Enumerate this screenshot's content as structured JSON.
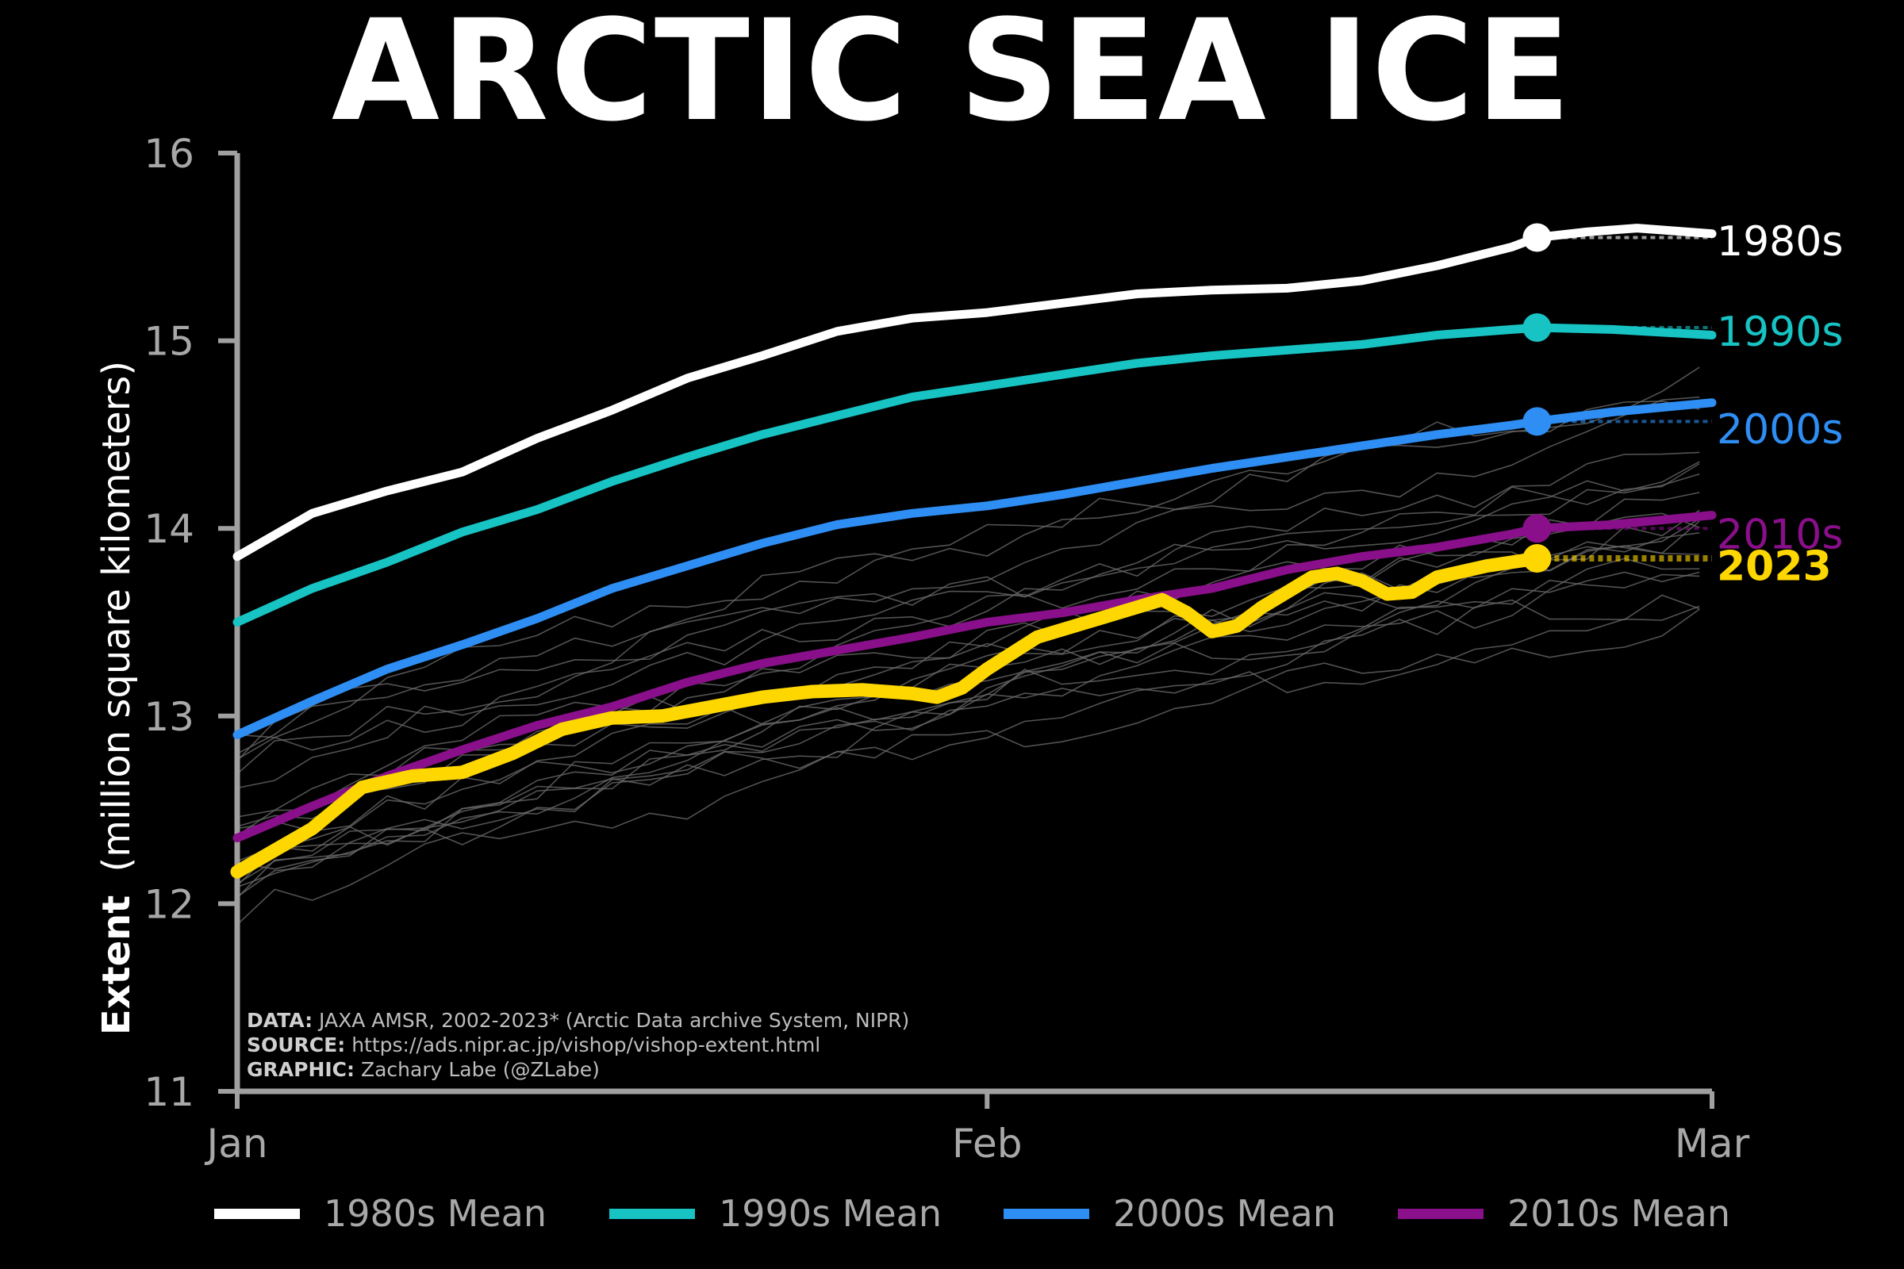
{
  "title": "ARCTIC SEA ICE",
  "credits": [
    {
      "key": "DATA:",
      "text": "JAXA AMSR, 2002-2023* (Arctic Data archive System, NIPR)"
    },
    {
      "key": "SOURCE:",
      "text": "https://ads.nipr.ac.jp/vishop/vishop-extent.html"
    },
    {
      "key": "GRAPHIC:",
      "text": "Zachary Labe (@ZLabe)"
    }
  ],
  "chart_data": {
    "type": "line",
    "ylabel_bold": "Extent",
    "ylabel_rest": "(million square kilometers)",
    "ylim": [
      11,
      16
    ],
    "yticks": [
      "11",
      "12",
      "13",
      "14",
      "15",
      "16"
    ],
    "xlim": [
      0,
      59
    ],
    "xticks": [
      {
        "label": "Jan",
        "day": 0
      },
      {
        "label": "Feb",
        "day": 30
      },
      {
        "label": "Mar",
        "day": 59
      }
    ],
    "grid": false,
    "legend_position": "bottom",
    "series": [
      {
        "name": "1980s",
        "legend": "1980s Mean",
        "color": "#ffffff",
        "end_day": 59,
        "marker_day": 52,
        "x": [
          0,
          3,
          6,
          9,
          12,
          15,
          18,
          21,
          24,
          27,
          30,
          33,
          36,
          39,
          42,
          45,
          48,
          51,
          52,
          54,
          56,
          59
        ],
        "values": [
          13.85,
          14.08,
          14.2,
          14.3,
          14.48,
          14.63,
          14.8,
          14.92,
          15.05,
          15.12,
          15.15,
          15.2,
          15.25,
          15.27,
          15.28,
          15.32,
          15.4,
          15.5,
          15.55,
          15.58,
          15.6,
          15.57
        ]
      },
      {
        "name": "1990s",
        "legend": "1990s Mean",
        "color": "#17c3c3",
        "end_day": 59,
        "marker_day": 52,
        "x": [
          0,
          3,
          6,
          9,
          12,
          15,
          18,
          21,
          24,
          27,
          30,
          33,
          36,
          39,
          42,
          45,
          48,
          51,
          52,
          55,
          59
        ],
        "values": [
          13.5,
          13.68,
          13.82,
          13.98,
          14.1,
          14.25,
          14.38,
          14.5,
          14.6,
          14.7,
          14.76,
          14.82,
          14.88,
          14.92,
          14.95,
          14.98,
          15.03,
          15.06,
          15.07,
          15.06,
          15.03
        ]
      },
      {
        "name": "2000s",
        "legend": "2000s Mean",
        "color": "#2f8ef4",
        "end_day": 59,
        "marker_day": 52,
        "x": [
          0,
          3,
          6,
          9,
          12,
          15,
          18,
          21,
          24,
          27,
          30,
          33,
          36,
          39,
          42,
          45,
          48,
          51,
          52,
          55,
          59
        ],
        "values": [
          12.9,
          13.08,
          13.25,
          13.38,
          13.52,
          13.68,
          13.8,
          13.92,
          14.02,
          14.08,
          14.12,
          14.18,
          14.25,
          14.32,
          14.38,
          14.44,
          14.5,
          14.55,
          14.57,
          14.62,
          14.67
        ]
      },
      {
        "name": "2010s",
        "legend": "2010s Mean",
        "color": "#8a0f8a",
        "end_day": 59,
        "marker_day": 52,
        "x": [
          0,
          3,
          6,
          9,
          12,
          15,
          18,
          21,
          24,
          27,
          30,
          33,
          36,
          39,
          42,
          45,
          48,
          51,
          52,
          55,
          59
        ],
        "values": [
          12.35,
          12.52,
          12.68,
          12.82,
          12.95,
          13.05,
          13.18,
          13.28,
          13.35,
          13.42,
          13.5,
          13.55,
          13.62,
          13.68,
          13.78,
          13.85,
          13.9,
          13.97,
          14.0,
          14.02,
          14.07
        ]
      },
      {
        "name": "2023",
        "legend": "",
        "color": "#ffd700",
        "end_day": 52,
        "marker_day": 52,
        "x": [
          0,
          3,
          5,
          7,
          9,
          11,
          13,
          15,
          17,
          19,
          21,
          23,
          25,
          27,
          28,
          29,
          30,
          32,
          34,
          36,
          37,
          38,
          39,
          40,
          41,
          42,
          43,
          44,
          45,
          46,
          47,
          48,
          50,
          52
        ],
        "values": [
          12.17,
          12.4,
          12.62,
          12.68,
          12.7,
          12.8,
          12.93,
          12.99,
          13.0,
          13.05,
          13.1,
          13.13,
          13.14,
          13.12,
          13.1,
          13.15,
          13.25,
          13.42,
          13.5,
          13.58,
          13.62,
          13.55,
          13.45,
          13.48,
          13.58,
          13.66,
          13.74,
          13.76,
          13.72,
          13.65,
          13.66,
          13.74,
          13.8,
          13.84
        ]
      }
    ]
  }
}
